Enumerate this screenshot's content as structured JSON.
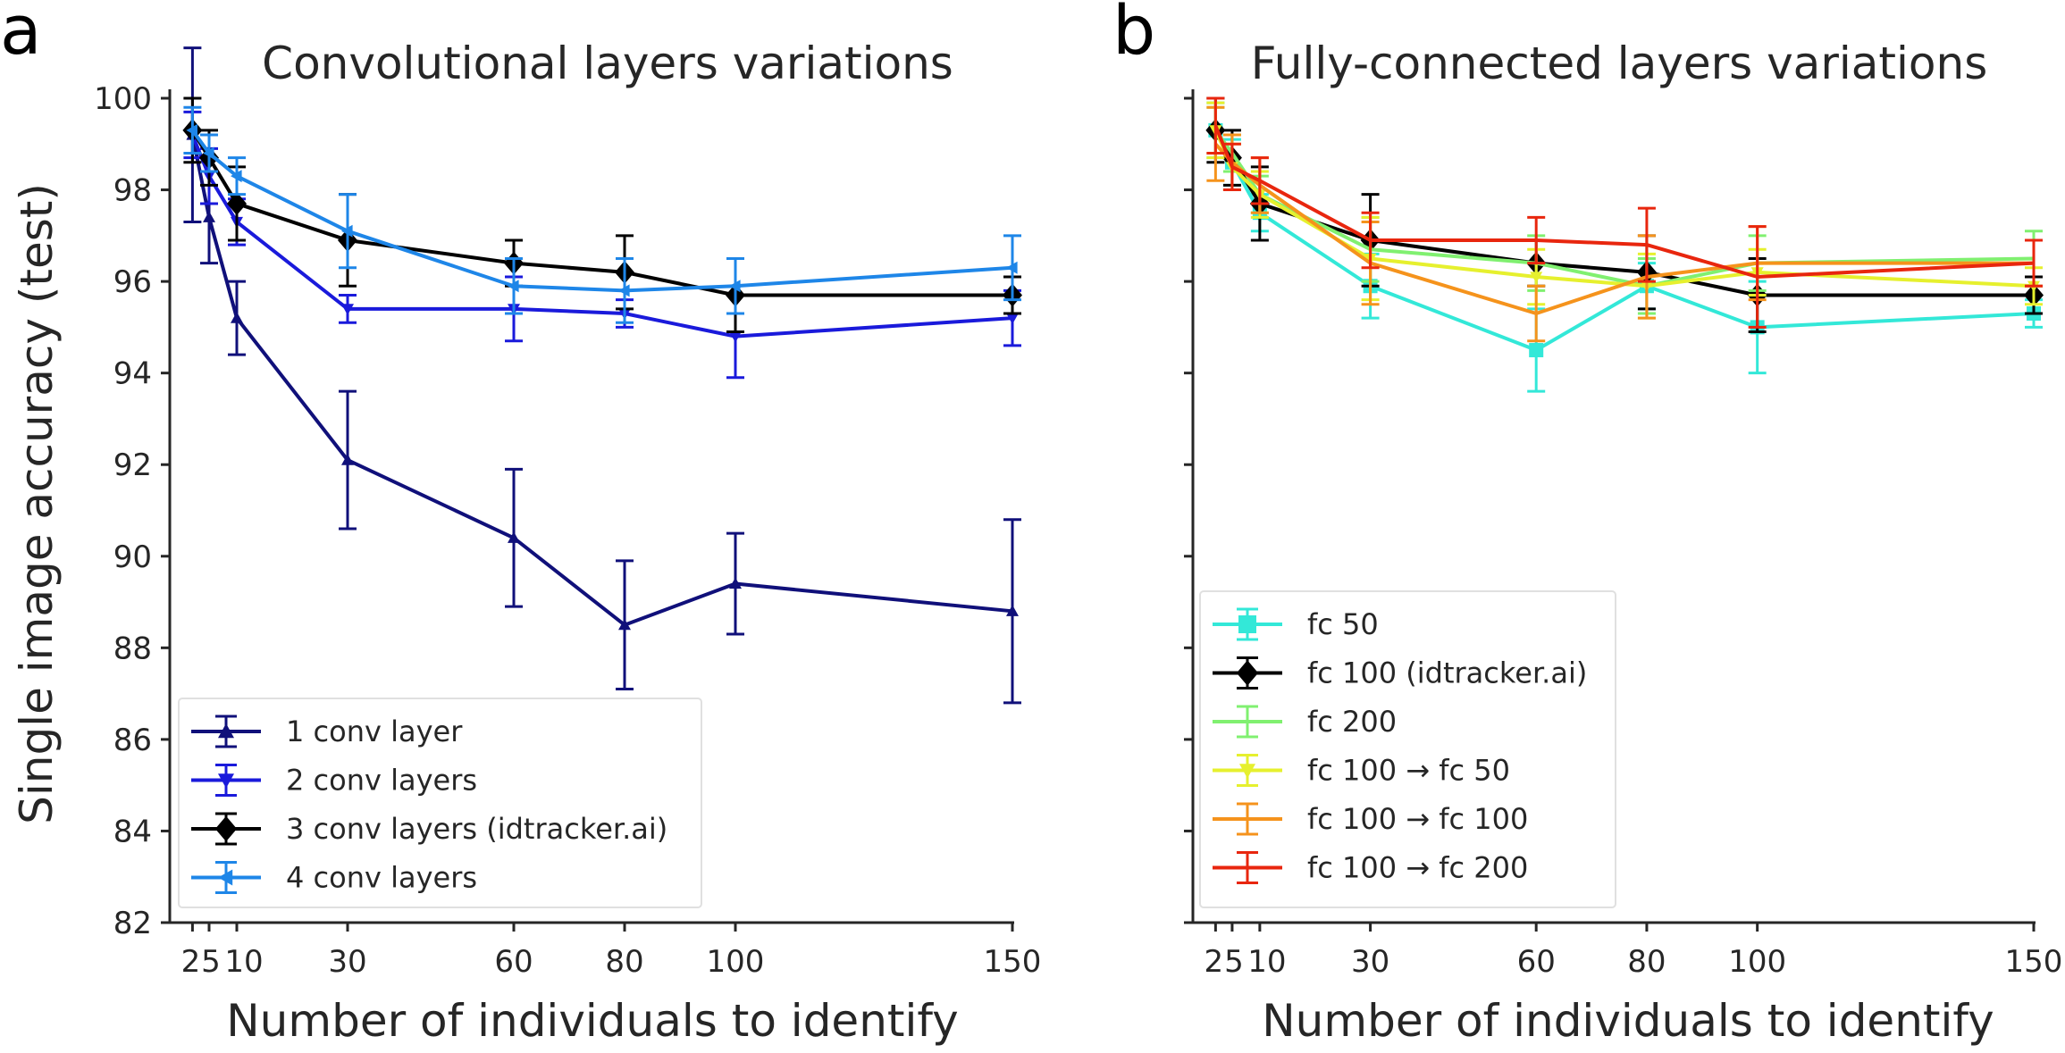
{
  "panels": {
    "a": {
      "letter": "a"
    },
    "b": {
      "letter": "b"
    }
  },
  "chart_data": [
    {
      "type": "line",
      "panel": "a",
      "title": "Convolutional layers variations",
      "xlabel": "Number of individuals to identify",
      "ylabel": "Single image accuracy (test)",
      "ylim": [
        82,
        100
      ],
      "xlim": [
        0,
        150
      ],
      "xticks": [
        2,
        5,
        10,
        30,
        60,
        80,
        100,
        150
      ],
      "xtick_labels": [
        "2",
        "5",
        "10",
        "30",
        "60",
        "80",
        "100",
        "150"
      ],
      "yticks": [
        82,
        84,
        86,
        88,
        90,
        92,
        94,
        96,
        98,
        100
      ],
      "x": [
        2,
        5,
        10,
        30,
        60,
        80,
        100,
        150
      ],
      "legend_position": "lower-left",
      "series": [
        {
          "name": "1 conv layer",
          "color": "#10107a",
          "marker": "triangle-up",
          "values": [
            99.2,
            97.4,
            95.2,
            92.1,
            90.4,
            88.5,
            89.4,
            88.8
          ],
          "errors": [
            1.9,
            1.0,
            0.8,
            1.5,
            1.5,
            1.4,
            1.1,
            2.0
          ]
        },
        {
          "name": "2 conv layers",
          "color": "#1a1adb",
          "marker": "triangle-down",
          "values": [
            99.2,
            98.3,
            97.3,
            95.4,
            95.4,
            95.3,
            94.8,
            95.2
          ],
          "errors": [
            0.5,
            0.6,
            0.5,
            0.3,
            0.7,
            0.3,
            0.9,
            0.6
          ]
        },
        {
          "name": "3 conv layers (idtracker.ai)",
          "color": "#000000",
          "marker": "diamond",
          "values": [
            99.3,
            98.7,
            97.7,
            96.9,
            96.4,
            96.2,
            95.7,
            95.7
          ],
          "errors": [
            0.7,
            0.6,
            0.8,
            1.0,
            0.5,
            0.8,
            0.8,
            0.4
          ]
        },
        {
          "name": "4 conv layers",
          "color": "#1e86e8",
          "marker": "triangle-left",
          "values": [
            99.3,
            98.8,
            98.3,
            97.1,
            95.9,
            95.8,
            95.9,
            96.3
          ],
          "errors": [
            0.5,
            0.4,
            0.4,
            0.8,
            0.6,
            0.7,
            0.6,
            0.7
          ]
        }
      ]
    },
    {
      "type": "line",
      "panel": "b",
      "title": "Fully-connected layers variations",
      "xlabel": "Number of individuals to identify",
      "ylabel": "",
      "ylim": [
        82,
        100
      ],
      "xlim": [
        0,
        150
      ],
      "xticks": [
        2,
        5,
        10,
        30,
        60,
        80,
        100,
        150
      ],
      "xtick_labels": [
        "2",
        "5",
        "10",
        "30",
        "60",
        "80",
        "100",
        "150"
      ],
      "x": [
        2,
        5,
        10,
        30,
        60,
        80,
        100,
        150
      ],
      "legend_position": "lower-left",
      "series": [
        {
          "name": "fc 50",
          "color": "#33e8d8",
          "marker": "square",
          "values": [
            99.3,
            98.6,
            97.5,
            95.9,
            94.5,
            95.9,
            95.0,
            95.3
          ],
          "errors": [
            0.6,
            0.5,
            0.4,
            0.7,
            0.9,
            0.5,
            1.0,
            0.3
          ]
        },
        {
          "name": "fc 100 (idtracker.ai)",
          "color": "#000000",
          "marker": "diamond",
          "values": [
            99.3,
            98.7,
            97.7,
            96.9,
            96.4,
            96.2,
            95.7,
            95.7
          ],
          "errors": [
            0.7,
            0.6,
            0.8,
            1.0,
            0.5,
            0.8,
            0.8,
            0.4
          ]
        },
        {
          "name": "fc 200",
          "color": "#80f070",
          "marker": "none",
          "values": [
            99.3,
            98.8,
            97.9,
            96.7,
            96.4,
            95.9,
            96.4,
            96.5
          ],
          "errors": [
            0.5,
            0.4,
            0.4,
            0.7,
            0.6,
            0.6,
            0.6,
            0.6
          ]
        },
        {
          "name": "fc 100 → fc 50",
          "color": "#e6f02e",
          "marker": "triangle-down",
          "values": [
            99.3,
            98.5,
            97.9,
            96.5,
            96.1,
            95.9,
            96.2,
            95.9
          ],
          "errors": [
            0.6,
            0.5,
            0.5,
            0.9,
            0.6,
            0.7,
            0.5,
            0.4
          ]
        },
        {
          "name": "fc 100 → fc 100",
          "color": "#f5931c",
          "marker": "none",
          "values": [
            99.0,
            98.6,
            98.1,
            96.4,
            95.3,
            96.1,
            96.4,
            96.4
          ],
          "errors": [
            0.8,
            0.6,
            0.6,
            0.9,
            0.6,
            0.9,
            0.8,
            0.5
          ]
        },
        {
          "name": "fc 100 → fc 200",
          "color": "#e8260e",
          "marker": "none",
          "values": [
            99.4,
            98.5,
            98.2,
            96.9,
            96.9,
            96.8,
            96.1,
            96.4
          ],
          "errors": [
            0.6,
            0.5,
            0.5,
            0.6,
            0.5,
            0.8,
            1.1,
            0.5
          ]
        }
      ]
    }
  ]
}
